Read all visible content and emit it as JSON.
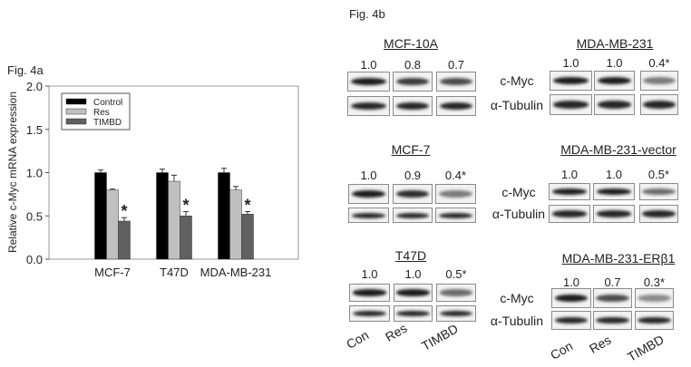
{
  "fig_a_label": "Fig. 4a",
  "fig_b_label": "Fig. 4b",
  "chart_data": {
    "type": "bar",
    "title": "",
    "xlabel": "",
    "ylabel": "Relative c-Myc mRNA expression",
    "ylim": [
      0,
      2.0
    ],
    "yticks": [
      "0.0",
      "0.5",
      "1.0",
      "1.5",
      "2.0"
    ],
    "categories": [
      "MCF-7",
      "T47D",
      "MDA-MB-231"
    ],
    "legend_position": "top-left",
    "grid": false,
    "series": [
      {
        "name": "Control",
        "color": "#000000",
        "values": [
          1.0,
          1.0,
          1.0
        ],
        "errors": [
          0.03,
          0.04,
          0.05
        ]
      },
      {
        "name": "Res",
        "color": "#c0c0c0",
        "values": [
          0.8,
          0.9,
          0.8
        ],
        "errors": [
          0.01,
          0.07,
          0.04
        ]
      },
      {
        "name": "TIMBD",
        "color": "#606060",
        "values": [
          0.44,
          0.5,
          0.52
        ],
        "errors": [
          0.04,
          0.05,
          0.03
        ]
      }
    ],
    "annotations": [
      "*",
      "*",
      "*"
    ]
  },
  "blots": {
    "row_labels": [
      "c-Myc",
      "α-Tubulin"
    ],
    "lane_labels": [
      "Con",
      "Res",
      "TIMBD"
    ],
    "panels": [
      {
        "title": "MCF-10A",
        "values": [
          "1.0",
          "0.8",
          "0.7"
        ],
        "levels": [
          1.0,
          0.8,
          0.7
        ],
        "show_row_labels": false
      },
      {
        "title": "MDA-MB-231",
        "values": [
          "1.0",
          "1.0",
          "0.4*"
        ],
        "levels": [
          1.0,
          1.0,
          0.4
        ],
        "show_row_labels": true
      },
      {
        "title": "MCF-7",
        "values": [
          "1.0",
          "0.9",
          "0.4*"
        ],
        "levels": [
          1.0,
          0.9,
          0.4
        ],
        "show_row_labels": false
      },
      {
        "title": "MDA-MB-231-vector",
        "values": [
          "1.0",
          "1.0",
          "0.5*"
        ],
        "levels": [
          1.0,
          1.0,
          0.5
        ],
        "show_row_labels": true
      },
      {
        "title": "T47D",
        "values": [
          "1.0",
          "1.0",
          "0.5*"
        ],
        "levels": [
          1.0,
          1.0,
          0.5
        ],
        "show_row_labels": false
      },
      {
        "title": "MDA-MB-231-ERβ1",
        "values": [
          "1.0",
          "0.7",
          "0.3*"
        ],
        "levels": [
          1.0,
          0.7,
          0.3
        ],
        "show_row_labels": true
      }
    ]
  }
}
